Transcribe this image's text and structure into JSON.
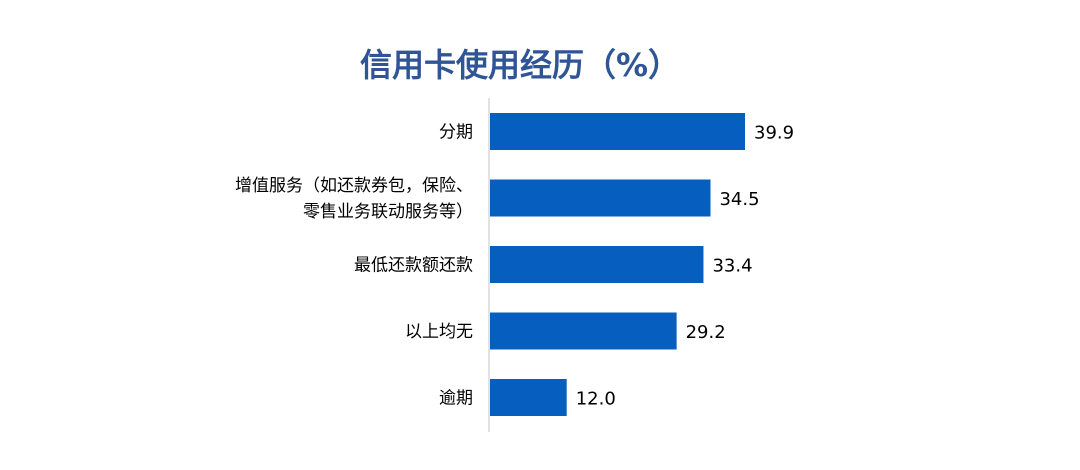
{
  "chart_data": {
    "type": "bar",
    "orientation": "horizontal",
    "title": "信用卡使用经历（%）",
    "categories": [
      "分期",
      "增值服务（如还款券包，保险、\n零售业务联动服务等）",
      "最低还款额还款",
      "以上均无",
      "逾期"
    ],
    "values": [
      39.9,
      34.5,
      33.4,
      29.2,
      12.0
    ],
    "xlim": [
      0,
      80
    ],
    "grid": false,
    "data_labels": true,
    "colors": {
      "bar": "#065FBE",
      "title": "#2F5597",
      "axis": "#D9D9D9",
      "text": "#000000"
    }
  }
}
